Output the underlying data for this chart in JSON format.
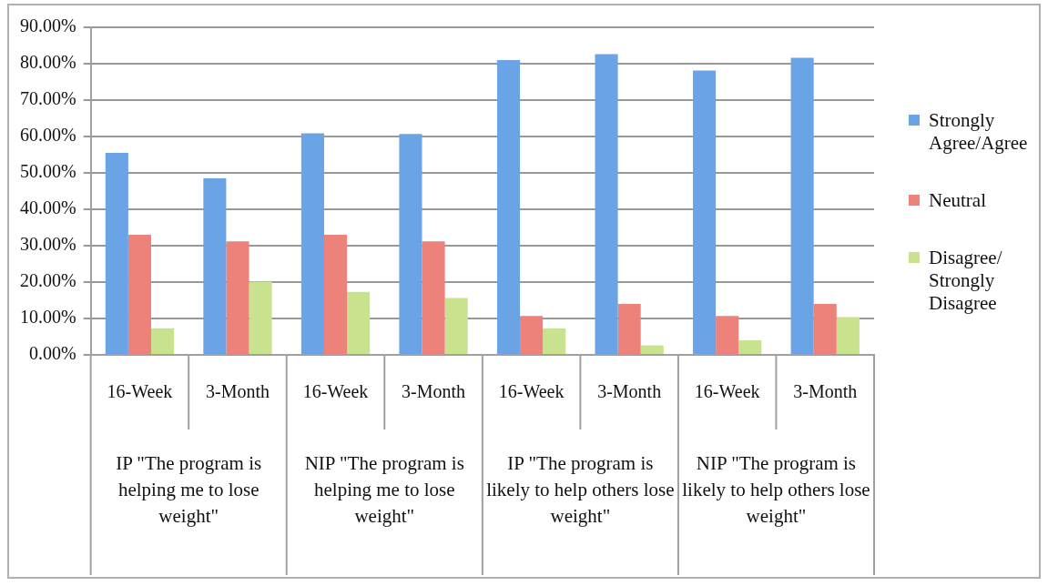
{
  "chart_data": {
    "type": "bar",
    "categories": [
      "16-Week",
      "3-Month",
      "16-Week",
      "3-Month",
      "16-Week",
      "3-Month",
      "16-Week",
      "3-Month"
    ],
    "series": [
      {
        "name": "Strongly Agree/Agree",
        "color": "#6aa3e6",
        "values": [
          55.5,
          48.5,
          60.9,
          60.7,
          81.0,
          82.6,
          78.1,
          81.6
        ]
      },
      {
        "name": "Neutral",
        "color": "#ec827a",
        "values": [
          33.0,
          31.2,
          33.0,
          31.2,
          10.7,
          14.0,
          10.7,
          14.0
        ]
      },
      {
        "name": "Disagree/Strongly Disagree",
        "color": "#c8e28e",
        "values": [
          7.3,
          20.1,
          17.3,
          15.6,
          7.3,
          2.6,
          4.0,
          10.4
        ]
      }
    ],
    "ylim": [
      0,
      90
    ],
    "yticks": [
      {
        "value": 0,
        "label": "0.00%"
      },
      {
        "value": 10,
        "label": "10.00%"
      },
      {
        "value": 20,
        "label": "20.00%"
      },
      {
        "value": 30,
        "label": "30.00%"
      },
      {
        "value": 40,
        "label": "40.00%"
      },
      {
        "value": 50,
        "label": "50.00%"
      },
      {
        "value": 60,
        "label": "60.00%"
      },
      {
        "value": 70,
        "label": "70.00%"
      },
      {
        "value": 80,
        "label": "80.00%"
      },
      {
        "value": 90,
        "label": "90.00%"
      }
    ],
    "grid": "y",
    "legend": "right",
    "annotations": [
      "IP \"The program is helping me to lose weight\"",
      "NIP \"The program is helping me to lose weight\"",
      "IP \"The program is likely to help others lose weight\"",
      "NIP \"The program is likely to help others lose weight\""
    ]
  }
}
